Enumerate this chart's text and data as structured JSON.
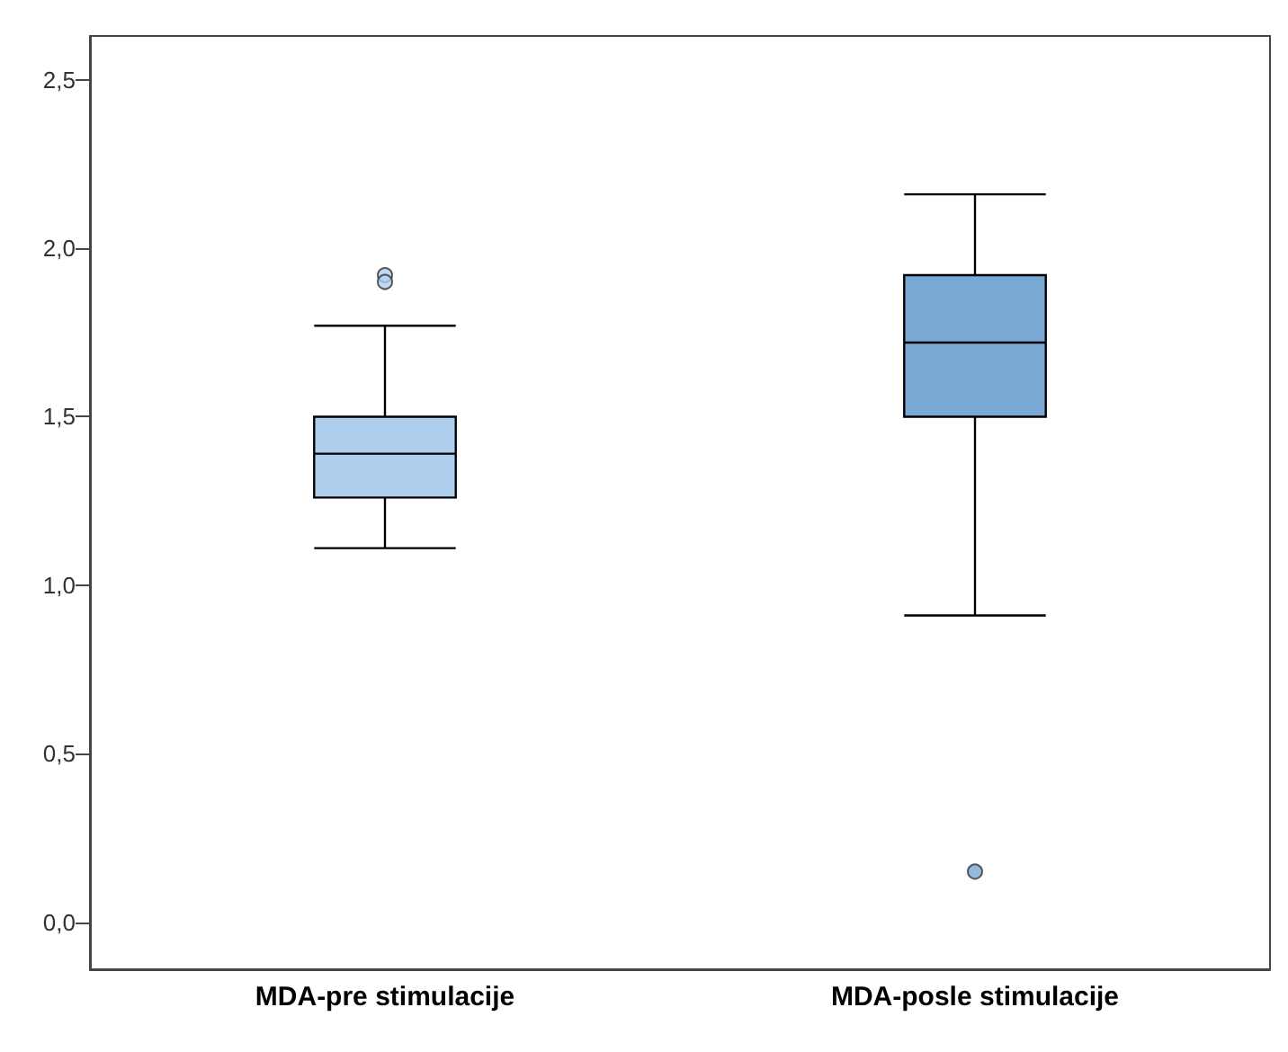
{
  "chart_data": {
    "type": "box",
    "categories": [
      "MDA-pre stimulacije",
      "MDA-posle stimulacije"
    ],
    "boxes": [
      {
        "low": 1.11,
        "q1": 1.26,
        "median": 1.39,
        "q3": 1.5,
        "high": 1.77,
        "outliers": [
          1.92,
          1.9
        ]
      },
      {
        "low": 0.91,
        "q1": 1.5,
        "median": 1.72,
        "q3": 1.92,
        "high": 2.16,
        "outliers": [
          0.15
        ]
      }
    ],
    "colors": [
      "#aed0ee",
      "#7aa8d4"
    ],
    "ylim": [
      -0.14,
      2.63
    ],
    "yticks": [
      {
        "value": 0,
        "label": "0,0"
      },
      {
        "value": 0.5,
        "label": "0,5"
      },
      {
        "value": 1,
        "label": "1,0"
      },
      {
        "value": 1.5,
        "label": "1,5"
      },
      {
        "value": 2,
        "label": "2,0"
      },
      {
        "value": 2.5,
        "label": "2,5"
      }
    ],
    "grid": false
  }
}
